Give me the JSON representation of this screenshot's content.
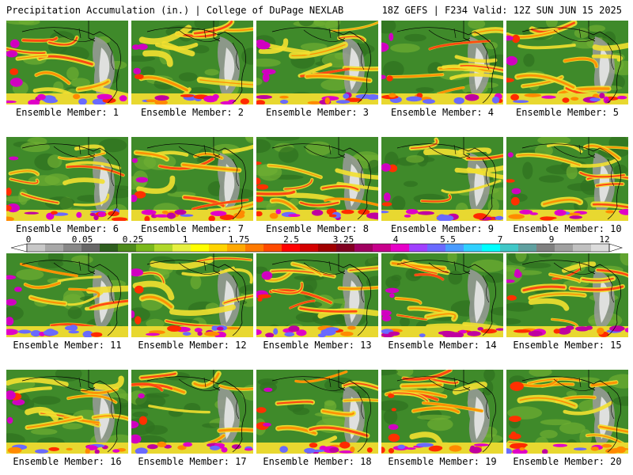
{
  "header": {
    "title": "Precipitation Accumulation (in.) | College of DuPage NEXLAB",
    "run_info": "18Z GEFS | F234 Valid: 12Z SUN JUN 15 2025"
  },
  "colorbar": {
    "labels": [
      "0",
      "0.05",
      "0.25",
      "1",
      "1.75",
      "2.5",
      "3.25",
      "4",
      "5.5",
      "7",
      "9",
      "12"
    ],
    "colors": [
      "#c8c8c8",
      "#a8a8a8",
      "#888888",
      "#686868",
      "#2e5e1e",
      "#4d8a1a",
      "#7ab81c",
      "#b0d82a",
      "#e6f040",
      "#ffff00",
      "#ffd400",
      "#ffa800",
      "#ff7a00",
      "#ff4a00",
      "#ff0000",
      "#d40000",
      "#a00000",
      "#800020",
      "#a00060",
      "#c8008c",
      "#e600c8",
      "#a040ff",
      "#6a6aff",
      "#4a9cff",
      "#30d0ff",
      "#00ffff",
      "#40c8c8",
      "#60a0a0",
      "#808080",
      "#a0a0a0",
      "#c0c0c0",
      "#dcdcdc"
    ]
  },
  "panels": [
    {
      "label": "Ensemble Member: 1"
    },
    {
      "label": "Ensemble Member: 2"
    },
    {
      "label": "Ensemble Member: 3"
    },
    {
      "label": "Ensemble Member: 4"
    },
    {
      "label": "Ensemble Member: 5"
    },
    {
      "label": "Ensemble Member: 6"
    },
    {
      "label": "Ensemble Member: 7"
    },
    {
      "label": "Ensemble Member: 8"
    },
    {
      "label": "Ensemble Member: 9"
    },
    {
      "label": "Ensemble Member: 10"
    },
    {
      "label": "Ensemble Member: 11"
    },
    {
      "label": "Ensemble Member: 12"
    },
    {
      "label": "Ensemble Member: 13"
    },
    {
      "label": "Ensemble Member: 14"
    },
    {
      "label": "Ensemble Member: 15"
    },
    {
      "label": "Ensemble Member: 16"
    },
    {
      "label": "Ensemble Member: 17"
    },
    {
      "label": "Ensemble Member: 18"
    },
    {
      "label": "Ensemble Member: 19"
    },
    {
      "label": "Ensemble Member: 20"
    }
  ]
}
